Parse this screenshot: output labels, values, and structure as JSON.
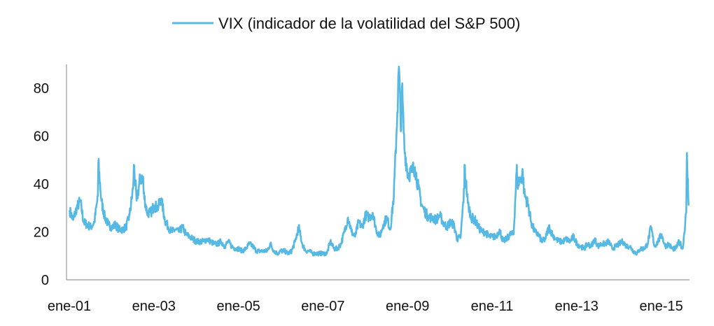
{
  "chart_data": {
    "type": "line",
    "title": "",
    "legend": {
      "position": "top-center",
      "entries": [
        "VIX (indicador de la volatilidad del S&P 500)"
      ]
    },
    "xlabel": "",
    "ylabel": "",
    "ylim": [
      0,
      90
    ],
    "yticks": [
      0,
      20,
      40,
      60,
      80
    ],
    "xticks": [
      {
        "year": 2001,
        "label": "ene-01"
      },
      {
        "year": 2003,
        "label": "ene-03"
      },
      {
        "year": 2005,
        "label": "ene-05"
      },
      {
        "year": 2007,
        "label": "ene-07"
      },
      {
        "year": 2009,
        "label": "ene-09"
      },
      {
        "year": 2011,
        "label": "ene-11"
      },
      {
        "year": 2013,
        "label": "ene-13"
      },
      {
        "year": 2015,
        "label": "ene-15"
      }
    ],
    "xlim": [
      2001,
      2015.7
    ],
    "color": "#56b9e3",
    "series": [
      {
        "name": "VIX (indicador de la volatilidad del S&P 500)",
        "start_year": 2001,
        "monthly_values": [
          29,
          25,
          30,
          33,
          24,
          23,
          22,
          24,
          35,
          33,
          26,
          23,
          22,
          23,
          21,
          21,
          22,
          27,
          38,
          33,
          42,
          36,
          28,
          28,
          31,
          30,
          34,
          25,
          22,
          20,
          21,
          20,
          22,
          19,
          18,
          17,
          16,
          16,
          16,
          17,
          16,
          15,
          15,
          16,
          14,
          16,
          14,
          13,
          13,
          12,
          13,
          15,
          14,
          12,
          12,
          12,
          12,
          15,
          12,
          11,
          12,
          12,
          11,
          12,
          16,
          22,
          15,
          12,
          12,
          11,
          11,
          11,
          11,
          11,
          16,
          13,
          13,
          15,
          20,
          26,
          20,
          18,
          24,
          22,
          27,
          26,
          28,
          21,
          18,
          23,
          26,
          21,
          35,
          70,
          62,
          55,
          44,
          45,
          47,
          38,
          31,
          28,
          26,
          26,
          25,
          27,
          24,
          22,
          24,
          23,
          17,
          18,
          38,
          32,
          26,
          25,
          22,
          20,
          20,
          18,
          18,
          18,
          21,
          16,
          17,
          19,
          19,
          40,
          42,
          36,
          32,
          24,
          20,
          19,
          16,
          17,
          22,
          19,
          17,
          16,
          16,
          17,
          16,
          18,
          15,
          14,
          13,
          15,
          14,
          17,
          14,
          15,
          15,
          16,
          13,
          14,
          15,
          16,
          14,
          14,
          12,
          11,
          13,
          13,
          15,
          22,
          14,
          16,
          19,
          14,
          15,
          13,
          13,
          16,
          13,
          28
        ],
        "spikes": [
          {
            "year": 2001.72,
            "value": 49
          },
          {
            "year": 2002.56,
            "value": 48
          },
          {
            "year": 2002.78,
            "value": 43
          },
          {
            "year": 2008.83,
            "value": 89
          },
          {
            "year": 2008.9,
            "value": 80
          },
          {
            "year": 2010.38,
            "value": 48
          },
          {
            "year": 2011.62,
            "value": 48
          },
          {
            "year": 2011.76,
            "value": 45
          },
          {
            "year": 2015.64,
            "value": 53
          },
          {
            "year": 2015.68,
            "value": 31
          }
        ]
      }
    ]
  }
}
